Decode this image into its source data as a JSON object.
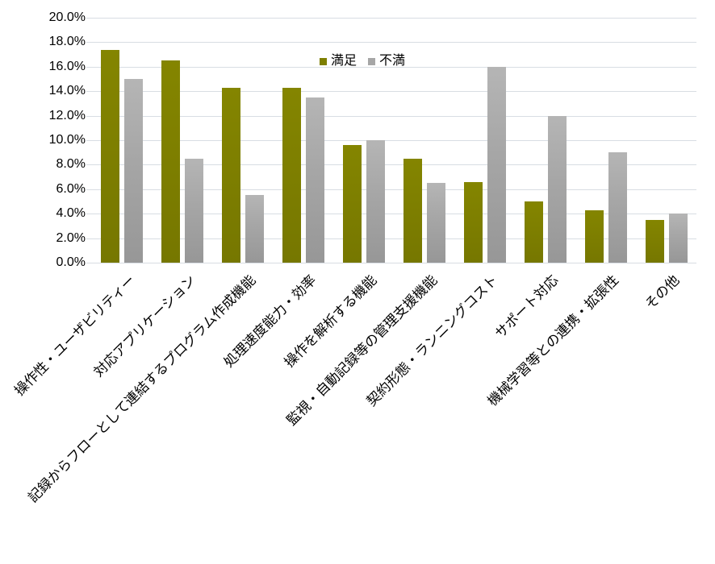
{
  "chart_data": {
    "type": "bar",
    "title": "",
    "categories": [
      "操作性・ユーザビリティー",
      "対応アプリケーション",
      "記録からフローとして連結するプログラム作成機能",
      "処理速度能力・効率",
      "操作を解析する機能",
      "監視・自動記録等の管理支援機能",
      "契約形態・ランニングコスト",
      "サポート対応",
      "機械学習等との連携・拡張性",
      "その他"
    ],
    "series": [
      {
        "name": "満足",
        "color": "#7E7F00",
        "values": [
          17.4,
          16.5,
          14.3,
          14.3,
          9.6,
          8.5,
          6.6,
          5.0,
          4.3,
          3.5
        ]
      },
      {
        "name": "不満",
        "color": "#A6A6A6",
        "values": [
          15.0,
          8.5,
          5.5,
          13.5,
          10.0,
          6.5,
          16.0,
          12.0,
          9.0,
          4.0
        ]
      }
    ],
    "y_axis": {
      "min": 0,
      "max": 20,
      "step": 2,
      "unit": "%",
      "tick_labels": [
        "0.0%",
        "2.0%",
        "4.0%",
        "6.0%",
        "8.0%",
        "10.0%",
        "12.0%",
        "14.0%",
        "16.0%",
        "18.0%",
        "20.0%"
      ]
    },
    "x_axis": {
      "label_rotation_deg": 45
    },
    "legend": {
      "position": "top"
    },
    "grid": true,
    "gridline_color": "#D8DDE3"
  }
}
